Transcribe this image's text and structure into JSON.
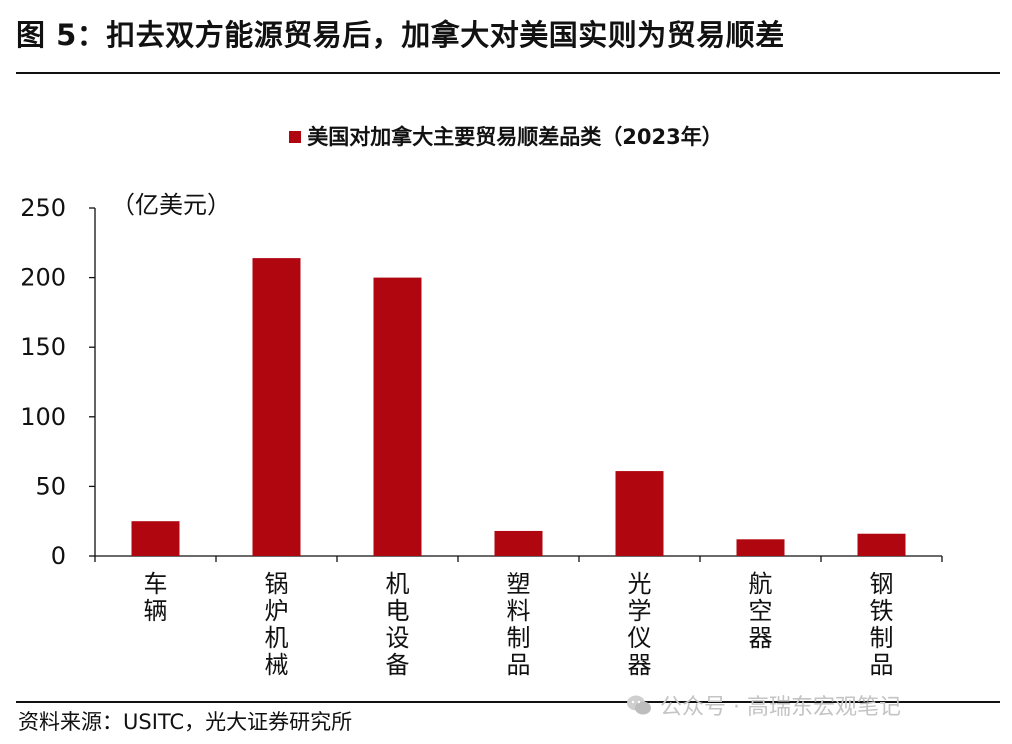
{
  "figure": {
    "title": "图 5：扣去双方能源贸易后，加拿大对美国实则为贸易顺差",
    "unit_label": "（亿美元）",
    "source": "资料来源：USITC，光大证券研究所",
    "watermark": "公众号 · 高瑞东宏观笔记"
  },
  "chart_data": {
    "type": "bar",
    "title": "美国对加拿大主要贸易顺差品类（2023年）",
    "ylabel": "（亿美元）",
    "xlabel": "",
    "ylim": [
      0,
      250
    ],
    "yticks": [
      0,
      50,
      100,
      150,
      200,
      250
    ],
    "categories": [
      "车辆",
      "锅炉机械",
      "机电设备",
      "塑料制品",
      "光学仪器",
      "航空器",
      "钢铁制品"
    ],
    "series": [
      {
        "name": "美国对加拿大主要贸易顺差品类（2023年）",
        "color": "#b0060f",
        "values": [
          25,
          214,
          200,
          18,
          61,
          12,
          16
        ]
      }
    ],
    "grid": false,
    "legend": "top-center"
  }
}
